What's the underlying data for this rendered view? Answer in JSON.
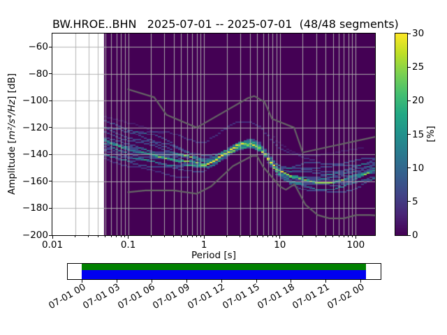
{
  "title": "BW.HROE..BHN   2025-07-01 -- 2025-07-01  (48/48 segments)",
  "axes": {
    "xlabel": "Period [s]",
    "ylabel_prefix": "Amplitude [",
    "ylabel_math": "m²/s⁴/Hz",
    "ylabel_suffix": "] [dB]",
    "x_tick_labels": [
      "0.01",
      "0.1",
      "1",
      "10",
      "100"
    ],
    "x_tick_values": [
      0.01,
      0.1,
      1,
      10,
      100
    ],
    "y_tick_labels": [
      "−60",
      "−80",
      "−100",
      "−120",
      "−140",
      "−160",
      "−180",
      "−200"
    ],
    "y_tick_values": [
      -60,
      -80,
      -100,
      -120,
      -140,
      -160,
      -180,
      -200
    ]
  },
  "colorbar": {
    "label": "[%]",
    "tick_labels": [
      "0",
      "5",
      "10",
      "15",
      "20",
      "25",
      "30"
    ],
    "tick_values": [
      0,
      5,
      10,
      15,
      20,
      25,
      30
    ]
  },
  "timeline": {
    "tick_labels": [
      "07-01 00",
      "07-01 03",
      "07-01 06",
      "07-01 09",
      "07-01 12",
      "07-01 15",
      "07-01 18",
      "07-01 21",
      "07-02 00"
    ],
    "segments_color": "#008000",
    "coverage_color": "#0000f0"
  },
  "chart_data": {
    "type": "heatmap",
    "xscale": "log",
    "xlim": [
      0.01,
      180
    ],
    "ylim": [
      -200,
      -50
    ],
    "clim": [
      0,
      30
    ],
    "n_segments_total": 48,
    "n_segments_used": 48,
    "data_period_range": [
      0.048,
      180
    ],
    "period_step_octaves": 0.125,
    "db_bin_width": 1,
    "grid_color": "#b0b0b0",
    "noise_model_color": "#666666",
    "no_data_color": "#ffffff",
    "zero_percent_color": "#440154",
    "ppsd_mode_curve": [
      [
        0.05,
        -130.0,
        15.0,
        13.0
      ],
      [
        0.07,
        -133.0,
        16.0,
        12.0
      ],
      [
        0.1,
        -137.0,
        17.0,
        10.0
      ],
      [
        0.15,
        -139.0,
        16.0,
        9.0
      ],
      [
        0.22,
        -140.5,
        15.0,
        8.0
      ],
      [
        0.35,
        -142.0,
        13.0,
        8.0
      ],
      [
        0.5,
        -144.0,
        10.0,
        7.0
      ],
      [
        0.7,
        -145.5,
        8.0,
        6.0
      ],
      [
        1.0,
        -147.0,
        6.0,
        5.0
      ],
      [
        1.4,
        -144.0,
        4.5,
        4.0
      ],
      [
        2.0,
        -138.5,
        3.5,
        3.5
      ],
      [
        2.8,
        -133.5,
        3.0,
        3.0
      ],
      [
        4.2,
        -131.8,
        3.0,
        3.0
      ],
      [
        5.2,
        -133.5,
        3.0,
        3.0
      ],
      [
        6.4,
        -139.5,
        3.2,
        3.0
      ],
      [
        7.8,
        -146.5,
        3.6,
        3.2
      ],
      [
        9.2,
        -151.5,
        4.5,
        3.5
      ],
      [
        11.0,
        -154.5,
        5.5,
        4.0
      ],
      [
        14.0,
        -157.5,
        8.0,
        5.0
      ],
      [
        20.0,
        -159.0,
        12.0,
        7.0
      ],
      [
        30.0,
        -160.0,
        14.0,
        8.0
      ],
      [
        50.0,
        -160.0,
        15.0,
        9.0
      ],
      [
        70.0,
        -158.5,
        14.0,
        9.0
      ],
      [
        100.0,
        -155.5,
        12.0,
        9.0
      ],
      [
        140.0,
        -152.5,
        11.0,
        9.0
      ],
      [
        180.0,
        -150.5,
        10.0,
        9.0
      ]
    ],
    "outlier_traces": [
      {
        "pmin": 0.12,
        "pmax": 28.0,
        "offset": 17,
        "weight": 2,
        "phase": 1.3
      },
      {
        "pmin": 0.048,
        "pmax": 0.65,
        "offset": -12,
        "weight": 2,
        "phase": 4.0
      },
      {
        "pmin": 8.0,
        "pmax": 130.0,
        "offset": 20,
        "weight": 1,
        "phase": 2.2
      },
      {
        "pmin": 0.048,
        "pmax": 0.3,
        "offset": 19,
        "weight": 1,
        "phase": 5.1
      }
    ],
    "noise_models": {
      "nhnm": [
        [
          0.1,
          -91.5
        ],
        [
          0.22,
          -97.4
        ],
        [
          0.32,
          -110.5
        ],
        [
          0.8,
          -120.0
        ],
        [
          3.8,
          -98.0
        ],
        [
          4.6,
          -96.5
        ],
        [
          6.3,
          -101.0
        ],
        [
          7.9,
          -113.5
        ],
        [
          15.4,
          -120.0
        ],
        [
          20.0,
          -138.5
        ],
        [
          180.0,
          -126.9
        ]
      ],
      "nlnm": [
        [
          0.1,
          -168.0
        ],
        [
          0.17,
          -166.7
        ],
        [
          0.4,
          -166.7
        ],
        [
          0.8,
          -169.2
        ],
        [
          1.24,
          -163.7
        ],
        [
          2.4,
          -148.6
        ],
        [
          4.3,
          -141.1
        ],
        [
          5.0,
          -141.1
        ],
        [
          6.0,
          -149.0
        ],
        [
          10.0,
          -163.8
        ],
        [
          12.0,
          -166.2
        ],
        [
          15.6,
          -162.1
        ],
        [
          21.9,
          -177.5
        ],
        [
          31.6,
          -185.0
        ],
        [
          45.0,
          -187.5
        ],
        [
          70.0,
          -187.5
        ],
        [
          101.0,
          -185.0
        ],
        [
          154.0,
          -185.0
        ],
        [
          180.0,
          -185.3
        ]
      ]
    },
    "colormap": {
      "name": "viridis",
      "stops": [
        [
          0.0,
          "#440154"
        ],
        [
          0.1,
          "#482475"
        ],
        [
          0.2,
          "#414487"
        ],
        [
          0.3,
          "#355f8d"
        ],
        [
          0.4,
          "#2a788e"
        ],
        [
          0.5,
          "#21918c"
        ],
        [
          0.6,
          "#22a884"
        ],
        [
          0.7,
          "#44bf70"
        ],
        [
          0.8,
          "#7ad151"
        ],
        [
          0.9,
          "#bddf26"
        ],
        [
          1.0,
          "#fde725"
        ]
      ]
    }
  }
}
